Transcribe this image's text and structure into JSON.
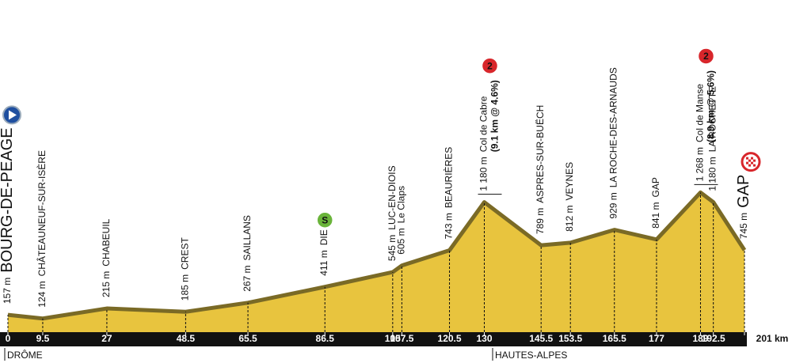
{
  "chart_data": {
    "type": "area",
    "x": [
      0,
      9.5,
      27,
      48.5,
      65.5,
      86.5,
      105,
      107.5,
      120.5,
      130,
      145.5,
      153.5,
      165.5,
      177,
      189,
      192.5,
      201
    ],
    "values": [
      157,
      124,
      215,
      185,
      267,
      411,
      545,
      605,
      743,
      1180,
      789,
      812,
      929,
      841,
      1268,
      1180,
      745
    ],
    "value_labels": [
      "157 m",
      "124 m",
      "215 m",
      "185 m",
      "267 m",
      "411 m",
      "545 m",
      "605 m",
      "743 m",
      "1 180 m",
      "789 m",
      "812 m",
      "929 m",
      "841 m",
      "1 268 m",
      "1 180 m",
      "745 m"
    ],
    "place_names": [
      "BOURG-DE-PÉAGE",
      "CHÂTEAUNEUF-SUR-ISÈRE",
      "CHABEUIL",
      "CREST",
      "SAILLANS",
      "DIE",
      "LUC-EN-DIOIS",
      "Le Claps",
      "BEAURIÈRES",
      "Col de Cabre",
      "ASPRES-SUR-BUËCH",
      "VEYNES",
      "LA ROCHE-DES-ARNAUDS",
      "GAP",
      "Col de Manse",
      "LA ROCHETTE",
      "GAP"
    ],
    "climb_notes": [
      null,
      null,
      null,
      null,
      null,
      null,
      null,
      null,
      null,
      "(9.1 km @ 4.6%)",
      null,
      null,
      null,
      null,
      "(8.9 km @ 5.6%)",
      null,
      null
    ],
    "badges": [
      null,
      null,
      null,
      null,
      null,
      "S",
      null,
      null,
      null,
      "2",
      null,
      null,
      null,
      null,
      "2",
      null,
      null
    ],
    "xlim": [
      0,
      201
    ],
    "ylim": [
      0,
      1400
    ],
    "xticks": [
      0,
      9.5,
      27,
      48.5,
      65.5,
      86.5,
      105,
      107.5,
      120.5,
      130,
      145.5,
      153.5,
      165.5,
      177,
      189,
      192.5,
      {
        "value": 201,
        "label": "201 km"
      }
    ],
    "regions": [
      "DRÔME",
      "HAUTES-ALPES"
    ],
    "color": "#e8c43e"
  }
}
